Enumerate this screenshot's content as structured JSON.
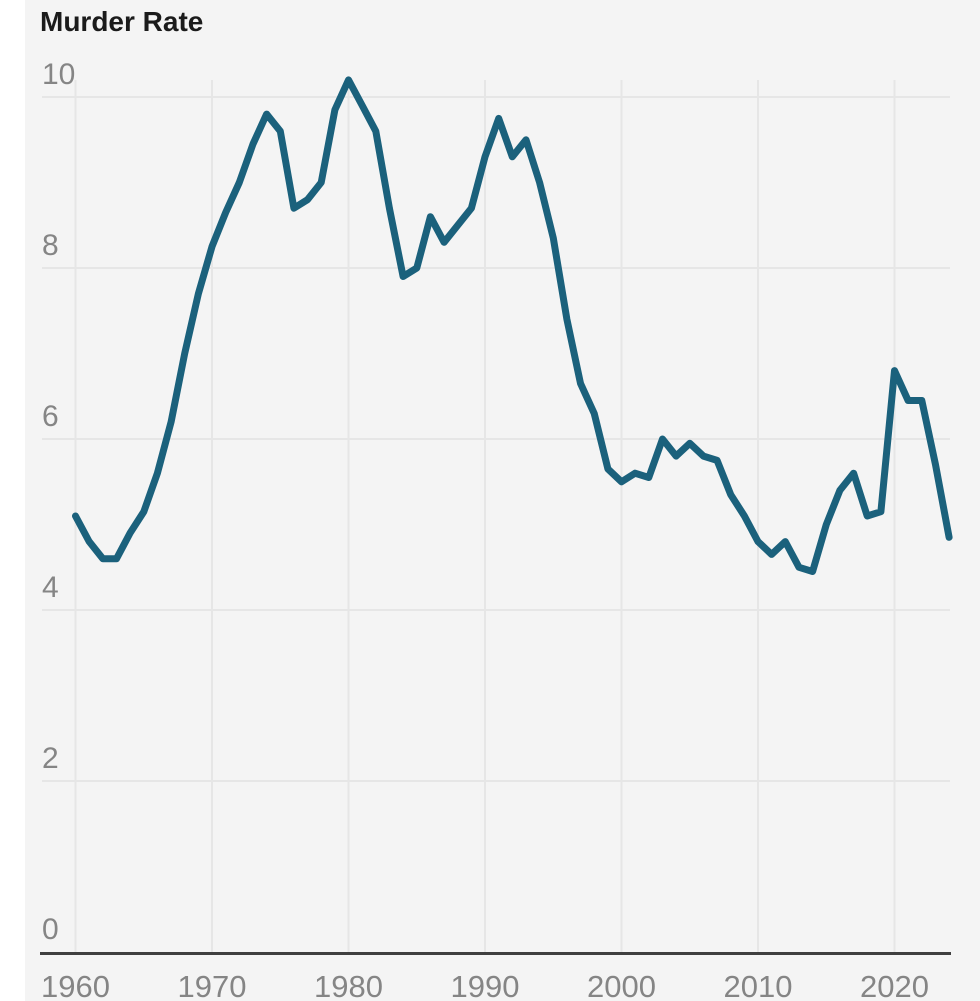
{
  "chart": {
    "title": "Murder Rate"
  },
  "colors": {
    "page_bg": "#ffffff",
    "panel_bg": "#f4f4f4",
    "line": "#1b617c",
    "grid": "#e6e6e6",
    "axis": "#3f3f3f",
    "tick_label": "#858585",
    "title": "#1b1b1b"
  },
  "chart_data": {
    "type": "line",
    "title": "Murder Rate",
    "xlabel": "",
    "ylabel": "",
    "xlim": [
      1960,
      2024
    ],
    "ylim": [
      0,
      10
    ],
    "grid": true,
    "legend": false,
    "xticks": [
      1960,
      1970,
      1980,
      1990,
      2000,
      2010,
      2020
    ],
    "yticks": [
      0,
      2,
      4,
      6,
      8,
      10
    ],
    "x": [
      1960,
      1961,
      1962,
      1963,
      1964,
      1965,
      1966,
      1967,
      1968,
      1969,
      1970,
      1971,
      1972,
      1973,
      1974,
      1975,
      1976,
      1977,
      1978,
      1979,
      1980,
      1981,
      1982,
      1983,
      1984,
      1985,
      1986,
      1987,
      1988,
      1989,
      1990,
      1991,
      1992,
      1993,
      1994,
      1995,
      1996,
      1997,
      1998,
      1999,
      2000,
      2001,
      2002,
      2003,
      2004,
      2005,
      2006,
      2007,
      2008,
      2009,
      2010,
      2011,
      2012,
      2013,
      2014,
      2015,
      2016,
      2017,
      2018,
      2019,
      2020,
      2021,
      2022,
      2023,
      2024
    ],
    "values": [
      5.1,
      4.8,
      4.6,
      4.6,
      4.9,
      5.15,
      5.6,
      6.2,
      7.0,
      7.7,
      8.25,
      8.65,
      9.0,
      9.45,
      9.8,
      9.6,
      8.7,
      8.8,
      9.0,
      9.85,
      10.2,
      9.9,
      9.6,
      8.7,
      7.9,
      8.0,
      8.6,
      8.3,
      8.5,
      8.7,
      9.3,
      9.75,
      9.3,
      9.5,
      9.0,
      8.35,
      7.4,
      6.65,
      6.3,
      5.65,
      5.5,
      5.6,
      5.55,
      6.0,
      5.8,
      5.95,
      5.8,
      5.75,
      5.35,
      5.1,
      4.8,
      4.65,
      4.8,
      4.5,
      4.45,
      5.0,
      5.4,
      5.6,
      5.1,
      5.15,
      6.8,
      6.45,
      6.45,
      5.7,
      4.85
    ]
  }
}
